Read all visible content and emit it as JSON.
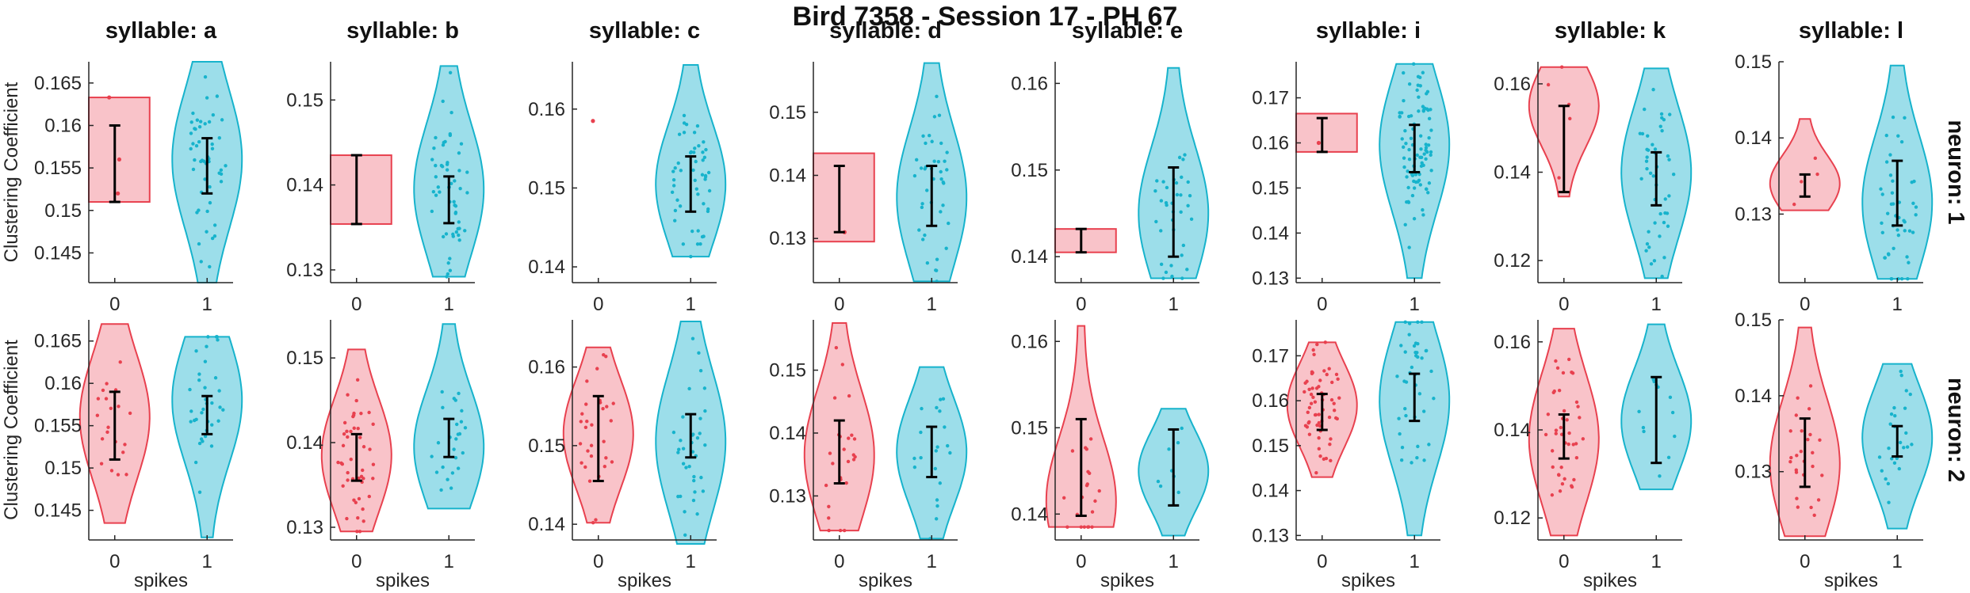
{
  "title": "Bird 7358 - Session 17 - PH 67",
  "ylabel": "Clustering Coefficient",
  "xlabel": "spikes",
  "row_labels": [
    "neuron: 1",
    "neuron: 2"
  ],
  "colors": {
    "group0_fill": "#f8b9c0",
    "group0_edge": "#e8414f",
    "group1_fill": "#8bd8e6",
    "group1_edge": "#17b3cc",
    "errorbar": "#000000",
    "axis": "#262626"
  },
  "chart_data": [
    {
      "type": "violin",
      "row": 1,
      "title": "syllable: a",
      "categories": [
        "0",
        "1"
      ],
      "xlabel": "",
      "ylabel": "Clustering Coefficient",
      "ylim": [
        0.1415,
        0.1675
      ],
      "yticks": [
        0.145,
        0.15,
        0.155,
        0.16,
        0.165
      ],
      "ytick_labels": [
        "0.145",
        "0.15",
        "0.155",
        "0.16",
        "0.165"
      ],
      "groups": [
        {
          "name": "0",
          "shape": "flat",
          "range": [
            0.151,
            0.1633
          ],
          "mean": 0.1555,
          "err": [
            0.151,
            0.16
          ],
          "points": [
            0.1633,
            0.156,
            0.152
          ]
        },
        {
          "name": "1",
          "shape": "violin",
          "range": [
            0.1415,
            0.1675
          ],
          "peak": 0.156,
          "mean": 0.155,
          "err": [
            0.152,
            0.1585
          ],
          "n": 50
        }
      ]
    },
    {
      "type": "violin",
      "row": 1,
      "title": "syllable: b",
      "categories": [
        "0",
        "1"
      ],
      "xlabel": "",
      "ylabel": "",
      "ylim": [
        0.1285,
        0.1545
      ],
      "yticks": [
        0.13,
        0.14,
        0.15
      ],
      "ytick_labels": [
        "0.13",
        "0.14",
        "0.15"
      ],
      "groups": [
        {
          "name": "0",
          "shape": "flat",
          "range": [
            0.1354,
            0.1435
          ],
          "mean": 0.1395,
          "err": [
            0.1354,
            0.1435
          ],
          "points": []
        },
        {
          "name": "1",
          "shape": "violin",
          "range": [
            0.1292,
            0.154
          ],
          "peak": 0.1395,
          "mean": 0.138,
          "err": [
            0.1355,
            0.141
          ],
          "n": 55
        }
      ]
    },
    {
      "type": "violin",
      "row": 1,
      "title": "syllable: c",
      "categories": [
        "0",
        "1"
      ],
      "xlabel": "",
      "ylabel": "",
      "ylim": [
        0.138,
        0.166
      ],
      "yticks": [
        0.14,
        0.15,
        0.16
      ],
      "ytick_labels": [
        "0.14",
        "0.15",
        "0.16"
      ],
      "groups": [
        {
          "name": "0",
          "shape": "none",
          "range": [
            0.1585,
            0.1585
          ],
          "mean": 0.1585,
          "err": null,
          "points": [
            0.1585
          ]
        },
        {
          "name": "1",
          "shape": "violin",
          "range": [
            0.1413,
            0.1656
          ],
          "peak": 0.1505,
          "mean": 0.1505,
          "err": [
            0.147,
            0.154
          ],
          "n": 50
        }
      ]
    },
    {
      "type": "violin",
      "row": 1,
      "title": "syllable: d",
      "categories": [
        "0",
        "1"
      ],
      "xlabel": "",
      "ylabel": "",
      "ylim": [
        0.123,
        0.158
      ],
      "yticks": [
        0.13,
        0.14,
        0.15
      ],
      "ytick_labels": [
        "0.13",
        "0.14",
        "0.15"
      ],
      "groups": [
        {
          "name": "0",
          "shape": "flat",
          "range": [
            0.1295,
            0.1435
          ],
          "mean": 0.136,
          "err": [
            0.131,
            0.1415
          ],
          "points": [
            0.131
          ]
        },
        {
          "name": "1",
          "shape": "violin",
          "range": [
            0.1232,
            0.1578
          ],
          "peak": 0.1365,
          "mean": 0.1365,
          "err": [
            0.132,
            0.1415
          ],
          "n": 40
        }
      ]
    },
    {
      "type": "violin",
      "row": 1,
      "title": "syllable: e",
      "categories": [
        "0",
        "1"
      ],
      "xlabel": "",
      "ylabel": "",
      "ylim": [
        0.137,
        0.1625
      ],
      "yticks": [
        0.14,
        0.15,
        0.16
      ],
      "ytick_labels": [
        "0.14",
        "0.15",
        "0.16"
      ],
      "groups": [
        {
          "name": "0",
          "shape": "flat",
          "range": [
            0.1405,
            0.1432
          ],
          "mean": 0.1418,
          "err": [
            0.1405,
            0.1432
          ],
          "points": []
        },
        {
          "name": "1",
          "shape": "violin",
          "range": [
            0.1375,
            0.1618
          ],
          "peak": 0.145,
          "mean": 0.1445,
          "err": [
            0.14,
            0.1503
          ],
          "n": 35
        }
      ]
    },
    {
      "type": "violin",
      "row": 1,
      "title": "syllable: i",
      "categories": [
        "0",
        "1"
      ],
      "xlabel": "",
      "ylabel": "",
      "ylim": [
        0.129,
        0.178
      ],
      "yticks": [
        0.13,
        0.14,
        0.15,
        0.16,
        0.17
      ],
      "ytick_labels": [
        "0.13",
        "0.14",
        "0.15",
        "0.16",
        "0.17"
      ],
      "groups": [
        {
          "name": "0",
          "shape": "flat",
          "range": [
            0.158,
            0.1665
          ],
          "mean": 0.1615,
          "err": [
            0.158,
            0.1655
          ],
          "points": [
            0.16
          ]
        },
        {
          "name": "1",
          "shape": "violin",
          "range": [
            0.13,
            0.1775
          ],
          "peak": 0.1595,
          "mean": 0.158,
          "err": [
            0.1535,
            0.164
          ],
          "n": 90
        }
      ]
    },
    {
      "type": "violin",
      "row": 1,
      "title": "syllable: k",
      "categories": [
        "0",
        "1"
      ],
      "xlabel": "",
      "ylabel": "",
      "ylim": [
        0.115,
        0.165
      ],
      "yticks": [
        0.12,
        0.14,
        0.16
      ],
      "ytick_labels": [
        "0.12",
        "0.14",
        "0.16"
      ],
      "groups": [
        {
          "name": "0",
          "shape": "violin",
          "range": [
            0.1345,
            0.1638
          ],
          "peak": 0.155,
          "mean": 0.145,
          "err": [
            0.1355,
            0.155
          ],
          "n": 5
        },
        {
          "name": "1",
          "shape": "violin",
          "range": [
            0.116,
            0.1635
          ],
          "peak": 0.14,
          "mean": 0.138,
          "err": [
            0.1325,
            0.1445
          ],
          "n": 45
        }
      ]
    },
    {
      "type": "violin",
      "row": 1,
      "title": "syllable: l",
      "categories": [
        "0",
        "1"
      ],
      "xlabel": "",
      "ylabel": "",
      "ylim": [
        0.121,
        0.15
      ],
      "yticks": [
        0.13,
        0.14,
        0.15
      ],
      "ytick_labels": [
        "0.13",
        "0.14",
        "0.15"
      ],
      "groups": [
        {
          "name": "0",
          "shape": "violin",
          "range": [
            0.1305,
            0.1425
          ],
          "peak": 0.134,
          "mean": 0.1335,
          "err": [
            0.1323,
            0.1352
          ],
          "n": 4
        },
        {
          "name": "1",
          "shape": "violin",
          "range": [
            0.1215,
            0.1495
          ],
          "peak": 0.1315,
          "mean": 0.1325,
          "err": [
            0.1285,
            0.137
          ],
          "n": 45
        }
      ]
    },
    {
      "type": "violin",
      "row": 2,
      "title": "",
      "categories": [
        "0",
        "1"
      ],
      "xlabel": "spikes",
      "ylabel": "Clustering Coefficient",
      "ylim": [
        0.1415,
        0.1675
      ],
      "yticks": [
        0.145,
        0.15,
        0.155,
        0.16,
        0.165
      ],
      "ytick_labels": [
        "0.145",
        "0.15",
        "0.155",
        "0.16",
        "0.165"
      ],
      "groups": [
        {
          "name": "0",
          "shape": "violin",
          "range": [
            0.1435,
            0.167
          ],
          "peak": 0.156,
          "mean": 0.155,
          "err": [
            0.151,
            0.159
          ],
          "n": 20
        },
        {
          "name": "1",
          "shape": "violin",
          "range": [
            0.1418,
            0.1655
          ],
          "peak": 0.158,
          "mean": 0.1565,
          "err": [
            0.154,
            0.1585
          ],
          "n": 35
        }
      ]
    },
    {
      "type": "violin",
      "row": 2,
      "title": "",
      "categories": [
        "0",
        "1"
      ],
      "xlabel": "spikes",
      "ylabel": "",
      "ylim": [
        0.1285,
        0.1545
      ],
      "yticks": [
        0.13,
        0.14,
        0.15
      ],
      "ytick_labels": [
        "0.13",
        "0.14",
        "0.15"
      ],
      "groups": [
        {
          "name": "0",
          "shape": "violin",
          "range": [
            0.1295,
            0.151
          ],
          "peak": 0.1385,
          "mean": 0.138,
          "err": [
            0.1355,
            0.141
          ],
          "n": 45
        },
        {
          "name": "1",
          "shape": "violin",
          "range": [
            0.1322,
            0.154
          ],
          "peak": 0.1395,
          "mean": 0.1405,
          "err": [
            0.1383,
            0.1428
          ],
          "n": 25
        }
      ]
    },
    {
      "type": "violin",
      "row": 2,
      "title": "",
      "categories": [
        "0",
        "1"
      ],
      "xlabel": "spikes",
      "ylabel": "",
      "ylim": [
        0.138,
        0.166
      ],
      "yticks": [
        0.14,
        0.15,
        0.16
      ],
      "ytick_labels": [
        "0.14",
        "0.15",
        "0.16"
      ],
      "groups": [
        {
          "name": "0",
          "shape": "violin",
          "range": [
            0.1402,
            0.1625
          ],
          "peak": 0.1515,
          "mean": 0.151,
          "err": [
            0.1455,
            0.1563
          ],
          "n": 30
        },
        {
          "name": "1",
          "shape": "violin",
          "range": [
            0.1375,
            0.1658
          ],
          "peak": 0.1505,
          "mean": 0.151,
          "err": [
            0.1485,
            0.154
          ],
          "n": 35
        }
      ]
    },
    {
      "type": "violin",
      "row": 2,
      "title": "",
      "categories": [
        "0",
        "1"
      ],
      "xlabel": "spikes",
      "ylabel": "",
      "ylim": [
        0.123,
        0.158
      ],
      "yticks": [
        0.13,
        0.14,
        0.15
      ],
      "ytick_labels": [
        "0.13",
        "0.14",
        "0.15"
      ],
      "groups": [
        {
          "name": "0",
          "shape": "violin",
          "range": [
            0.1245,
            0.1575
          ],
          "peak": 0.1365,
          "mean": 0.137,
          "err": [
            0.132,
            0.142
          ],
          "n": 25
        },
        {
          "name": "1",
          "shape": "violin",
          "range": [
            0.1232,
            0.1505
          ],
          "peak": 0.137,
          "mean": 0.137,
          "err": [
            0.133,
            0.141
          ],
          "n": 20
        }
      ]
    },
    {
      "type": "violin",
      "row": 2,
      "title": "",
      "categories": [
        "0",
        "1"
      ],
      "xlabel": "spikes",
      "ylabel": "",
      "ylim": [
        0.137,
        0.1625
      ],
      "yticks": [
        0.14,
        0.15,
        0.16
      ],
      "ytick_labels": [
        "0.14",
        "0.15",
        "0.16"
      ],
      "groups": [
        {
          "name": "0",
          "shape": "violin",
          "range": [
            0.1385,
            0.1618
          ],
          "peak": 0.1415,
          "mean": 0.1455,
          "err": [
            0.1398,
            0.151
          ],
          "n": 20
        },
        {
          "name": "1",
          "shape": "violin",
          "range": [
            0.1375,
            0.1522
          ],
          "peak": 0.145,
          "mean": 0.1455,
          "err": [
            0.141,
            0.1498
          ],
          "n": 8
        }
      ]
    },
    {
      "type": "violin",
      "row": 2,
      "title": "",
      "categories": [
        "0",
        "1"
      ],
      "xlabel": "spikes",
      "ylabel": "",
      "ylim": [
        0.129,
        0.178
      ],
      "yticks": [
        0.13,
        0.14,
        0.15,
        0.16,
        0.17
      ],
      "ytick_labels": [
        "0.13",
        "0.14",
        "0.15",
        "0.16",
        "0.17"
      ],
      "groups": [
        {
          "name": "0",
          "shape": "violin",
          "range": [
            0.143,
            0.173
          ],
          "peak": 0.159,
          "mean": 0.1575,
          "err": [
            0.1535,
            0.1615
          ],
          "n": 60
        },
        {
          "name": "1",
          "shape": "violin",
          "range": [
            0.13,
            0.1775
          ],
          "peak": 0.16,
          "mean": 0.1605,
          "err": [
            0.1555,
            0.166
          ],
          "n": 40
        }
      ]
    },
    {
      "type": "violin",
      "row": 2,
      "title": "",
      "categories": [
        "0",
        "1"
      ],
      "xlabel": "spikes",
      "ylabel": "",
      "ylim": [
        0.115,
        0.165
      ],
      "yticks": [
        0.12,
        0.14,
        0.16
      ],
      "ytick_labels": [
        "0.12",
        "0.14",
        "0.16"
      ],
      "groups": [
        {
          "name": "0",
          "shape": "violin",
          "range": [
            0.116,
            0.163
          ],
          "peak": 0.138,
          "mean": 0.1385,
          "err": [
            0.1335,
            0.1435
          ],
          "n": 40
        },
        {
          "name": "1",
          "shape": "violin",
          "range": [
            0.1265,
            0.164
          ],
          "peak": 0.142,
          "mean": 0.1425,
          "err": [
            0.1325,
            0.152
          ],
          "n": 12
        }
      ]
    },
    {
      "type": "violin",
      "row": 2,
      "title": "",
      "categories": [
        "0",
        "1"
      ],
      "xlabel": "spikes",
      "ylabel": "",
      "ylim": [
        0.121,
        0.15
      ],
      "yticks": [
        0.13,
        0.14,
        0.15
      ],
      "ytick_labels": [
        "0.13",
        "0.14",
        "0.15"
      ],
      "groups": [
        {
          "name": "0",
          "shape": "violin",
          "range": [
            0.1215,
            0.149
          ],
          "peak": 0.131,
          "mean": 0.1325,
          "err": [
            0.128,
            0.137
          ],
          "n": 25
        },
        {
          "name": "1",
          "shape": "violin",
          "range": [
            0.1225,
            0.1442
          ],
          "peak": 0.1345,
          "mean": 0.134,
          "err": [
            0.132,
            0.136
          ],
          "n": 25
        }
      ]
    }
  ]
}
